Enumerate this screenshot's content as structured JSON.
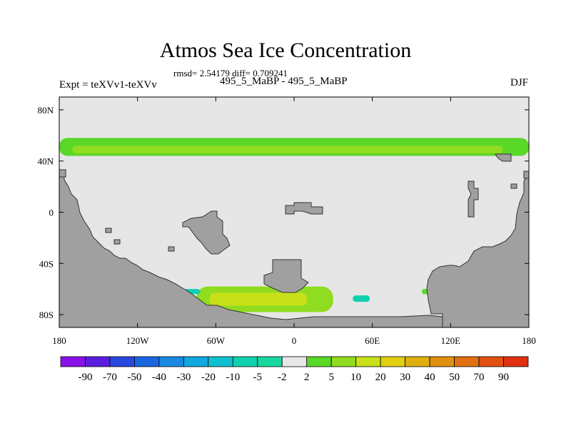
{
  "title": "Atmos Sea Ice Concentration",
  "stats": "rmsd= 2.54179 diff= 0.709241",
  "expt": "Expt = teXVv1-teXVv",
  "subtitle": "495_5_MaBP - 495_5_MaBP",
  "season": "DJF",
  "colors": {
    "land": "#a0a0a0",
    "ocean": "#e6e6e6",
    "coast": "#333333"
  },
  "chart_data": {
    "type": "heatmap",
    "x_ticks": [
      "180",
      "120W",
      "60W",
      "0",
      "60E",
      "120E",
      "180"
    ],
    "y_ticks": [
      "80N",
      "40N",
      "0",
      "40S",
      "80S"
    ],
    "x_range": [
      -180,
      180
    ],
    "y_range": [
      -90,
      90
    ],
    "colorbar": {
      "labels": [
        "-90",
        "-70",
        "-50",
        "-40",
        "-30",
        "-20",
        "-10",
        "-5",
        "-2",
        "2",
        "5",
        "10",
        "20",
        "30",
        "40",
        "50",
        "70",
        "90"
      ],
      "colors": [
        "#8a10e8",
        "#5a1ee0",
        "#2848e0",
        "#1a66e0",
        "#1a88e0",
        "#10a8e0",
        "#10c0d0",
        "#10d0b0",
        "#18d8a0",
        "#e8e8e8",
        "#5ad828",
        "#90dc20",
        "#c8e018",
        "#e0d010",
        "#e0b010",
        "#e09010",
        "#e07010",
        "#e05010",
        "#e03010"
      ]
    },
    "regions": [
      {
        "name": "band-north",
        "lon": [
          -180,
          180
        ],
        "lat": [
          44,
          58
        ],
        "value": 5
      },
      {
        "name": "band-north-core",
        "lon": [
          -170,
          160
        ],
        "lat": [
          46,
          52
        ],
        "value": 10
      },
      {
        "name": "south-blob",
        "lon": [
          -75,
          30
        ],
        "lat": [
          -78,
          -58
        ],
        "value": 10
      },
      {
        "name": "south-blob-core",
        "lon": [
          -65,
          10
        ],
        "lat": [
          -73,
          -63
        ],
        "value": 20
      },
      {
        "name": "patch-weddell",
        "lon": [
          45,
          58
        ],
        "lat": [
          -70,
          -65
        ],
        "value": -5
      },
      {
        "name": "patch-left",
        "lon": [
          -85,
          -72
        ],
        "lat": [
          -64,
          -60
        ],
        "value": -5
      },
      {
        "name": "patch-right-green",
        "lon": [
          98,
          104
        ],
        "lat": [
          -64,
          -60
        ],
        "value": 5
      }
    ]
  }
}
